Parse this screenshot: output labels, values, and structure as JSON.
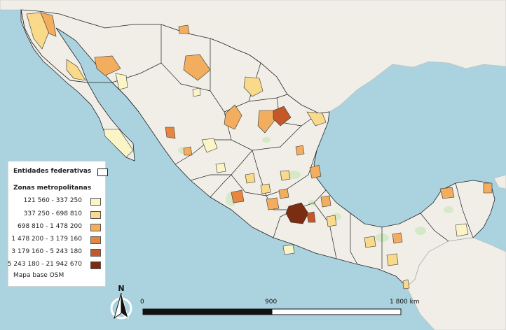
{
  "legend": {
    "states_title": "Entidades federativas",
    "zones_title": "Zonas metropolitanas",
    "classes": [
      {
        "label": "121 560 - 337 250",
        "color": "#fbf4c6"
      },
      {
        "label": "337 250 - 698 810",
        "color": "#f9d98a"
      },
      {
        "label": "698 810 - 1 478 200",
        "color": "#f2ad5e"
      },
      {
        "label": "1 478 200 - 3 179 160",
        "color": "#e8853f"
      },
      {
        "label": "3 179 160 - 5 243 180",
        "color": "#c45828"
      },
      {
        "label": "5 243 180 - 21 942 670",
        "color": "#7b2d12"
      }
    ],
    "basemap": "Mapa base OSM"
  },
  "north_arrow": {
    "letter": "N"
  },
  "scale_bar": {
    "start": "0",
    "mid": "900",
    "end": "1 800 km"
  },
  "colors": {
    "ocean": "#aad3df",
    "land": "#f1eee8",
    "vegetation": "#cfe7c0",
    "border": "#222222"
  }
}
